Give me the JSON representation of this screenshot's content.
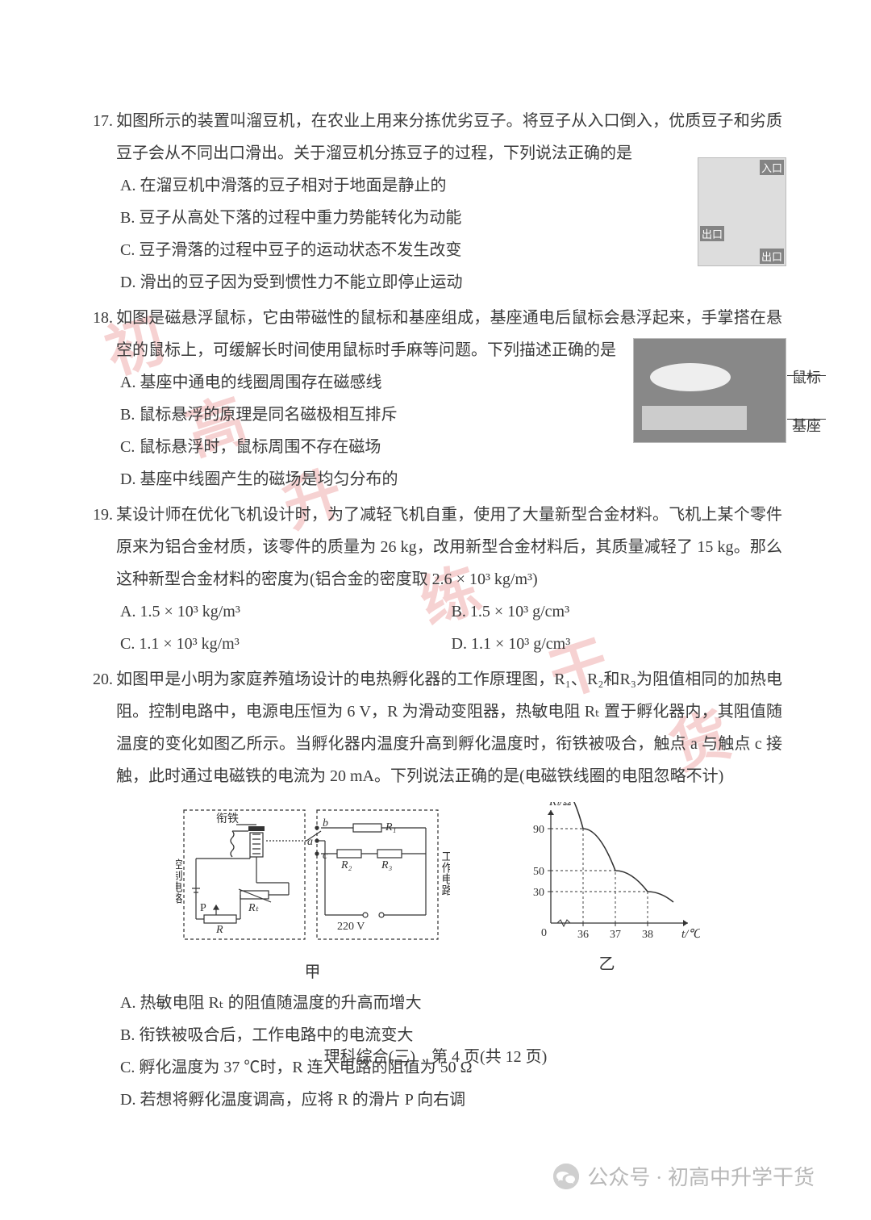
{
  "q17": {
    "num": "17.",
    "stem": "如图所示的装置叫溜豆机，在农业上用来分拣优劣豆子。将豆子从入口倒入，优质豆子和劣质豆子会从不同出口滑出。关于溜豆机分拣豆子的过程，下列说法正确的是",
    "A": "A. 在溜豆机中滑落的豆子相对于地面是静止的",
    "B": "B. 豆子从高处下落的过程中重力势能转化为动能",
    "C": "C. 豆子滑落的过程中豆子的运动状态不发生改变",
    "D": "D. 滑出的豆子因为受到惯性力不能立即停止运动",
    "img_labels": {
      "in": "入口",
      "out1": "出口",
      "out2": "出口"
    }
  },
  "q18": {
    "num": "18.",
    "stem": "如图是磁悬浮鼠标，它由带磁性的鼠标和基座组成，基座通电后鼠标会悬浮起来，手掌搭在悬空的鼠标上，可缓解长时间使用鼠标时手麻等问题。下列描述正确的是",
    "A": "A. 基座中通电的线圈周围存在磁感线",
    "B": "B. 鼠标悬浮的原理是同名磁极相互排斥",
    "C": "C. 鼠标悬浮时，鼠标周围不存在磁场",
    "D": "D. 基座中线圈产生的磁场是均匀分布的",
    "img_labels": {
      "mouse": "鼠标",
      "base": "基座"
    }
  },
  "q19": {
    "num": "19.",
    "stem": "某设计师在优化飞机设计时，为了减轻飞机自重，使用了大量新型合金材料。飞机上某个零件原来为铝合金材质，该零件的质量为 26 kg，改用新型合金材料后，其质量减轻了 15 kg。那么这种新型合金材料的密度为(铝合金的密度取 2.6 × 10³ kg/m³)",
    "A": "A. 1.5 × 10³ kg/m³",
    "B": "B. 1.5 × 10³ g/cm³",
    "C": "C. 1.1 × 10³ kg/m³",
    "D": "D. 1.1 × 10³ g/cm³"
  },
  "q20": {
    "num": "20.",
    "stem": "如图甲是小明为家庭养殖场设计的电热孵化器的工作原理图，R₁、R₂和R₃为阻值相同的加热电阻。控制电路中，电源电压恒为 6 V，R 为滑动变阻器，热敏电阻 Rₜ 置于孵化器内，其阻值随温度的变化如图乙所示。当孵化器内温度升高到孵化温度时，衔铁被吸合，触点 a 与触点 c 接触，此时通过电磁铁的电流为 20 mA。下列说法正确的是(电磁铁线圈的电阻忽略不计)",
    "A": "A. 热敏电阻 Rₜ 的阻值随温度的升高而增大",
    "B": "B. 衔铁被吸合后，工作电路中的电流变大",
    "C": "C. 孵化温度为 37 ℃时，R 连入电路的阻值为 50 Ω",
    "D": "D. 若想将孵化温度调高，应将 R 的滑片 P 向右调",
    "circuit": {
      "labels": {
        "relay": "衔铁",
        "control": "控制电路",
        "work": "工作电路",
        "R1": "R₁",
        "R2": "R₂",
        "R3": "R₃",
        "P": "P",
        "Rt": "Rₜ",
        "R": "R",
        "V": "220 V",
        "a": "a",
        "b": "b",
        "c": "c"
      },
      "caption": "甲"
    },
    "graph": {
      "ylabel": "Rₜ/Ω",
      "xlabel": "t/℃",
      "yticks": [
        30,
        50,
        90
      ],
      "xticks": [
        36,
        37,
        38
      ],
      "curve_color": "#333333",
      "axis_color": "#333333",
      "grid_dash": "3,3",
      "caption": "乙"
    }
  },
  "footer": "理科综合(三)　第 4 页(共 12 页)",
  "wx": "公众号 · 初高中升学干货",
  "watermarks": [
    "练",
    "升",
    "干",
    "货",
    "初",
    "高"
  ]
}
